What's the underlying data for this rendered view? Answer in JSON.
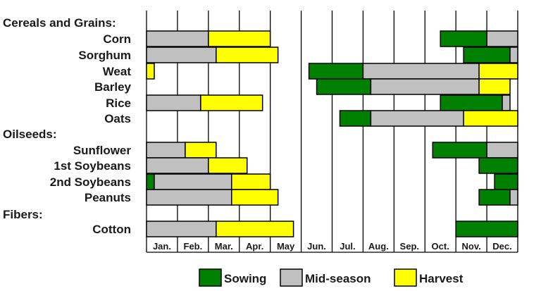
{
  "chart_data": {
    "type": "gantt",
    "months": [
      "Jan.",
      "Feb.",
      "Mar.",
      "Apr.",
      "May",
      "Jun.",
      "Jul.",
      "Aug.",
      "Sep.",
      "Oct.",
      "Nov.",
      "Dec."
    ],
    "month_range": [
      0,
      12
    ],
    "legend": [
      {
        "key": "sowing",
        "label": "Sowing",
        "color": "#008000"
      },
      {
        "key": "mid",
        "label": "Mid-season",
        "color": "#c0c0c0"
      },
      {
        "key": "harvest",
        "label": "Harvest",
        "color": "#ffff00"
      }
    ],
    "groups": [
      {
        "name": "Cereals and Grains:",
        "crops": [
          {
            "name": "Corn",
            "segments": [
              {
                "phase": "mid",
                "start": 0,
                "end": 2.0
              },
              {
                "phase": "harvest",
                "start": 2.0,
                "end": 4.0
              },
              {
                "phase": "sowing",
                "start": 9.5,
                "end": 11.0
              },
              {
                "phase": "mid",
                "start": 11.0,
                "end": 12.0
              }
            ]
          },
          {
            "name": "Sorghum",
            "segments": [
              {
                "phase": "mid",
                "start": 0,
                "end": 2.25
              },
              {
                "phase": "harvest",
                "start": 2.25,
                "end": 4.25
              },
              {
                "phase": "sowing",
                "start": 10.25,
                "end": 11.75
              },
              {
                "phase": "mid",
                "start": 11.75,
                "end": 12.0
              }
            ]
          },
          {
            "name": "Weat",
            "segments": [
              {
                "phase": "harvest",
                "start": 0,
                "end": 0.25
              },
              {
                "phase": "sowing",
                "start": 5.25,
                "end": 7.0
              },
              {
                "phase": "mid",
                "start": 7.0,
                "end": 10.75
              },
              {
                "phase": "harvest",
                "start": 10.75,
                "end": 12.0
              }
            ]
          },
          {
            "name": "Barley",
            "segments": [
              {
                "phase": "sowing",
                "start": 5.5,
                "end": 7.25
              },
              {
                "phase": "mid",
                "start": 7.25,
                "end": 10.75
              },
              {
                "phase": "harvest",
                "start": 10.75,
                "end": 11.75
              }
            ]
          },
          {
            "name": "Rice",
            "segments": [
              {
                "phase": "mid",
                "start": 0,
                "end": 1.75
              },
              {
                "phase": "harvest",
                "start": 1.75,
                "end": 3.75
              },
              {
                "phase": "sowing",
                "start": 9.5,
                "end": 11.5
              },
              {
                "phase": "mid",
                "start": 11.5,
                "end": 11.75
              }
            ]
          },
          {
            "name": "Oats",
            "segments": [
              {
                "phase": "sowing",
                "start": 6.25,
                "end": 7.25
              },
              {
                "phase": "mid",
                "start": 7.25,
                "end": 10.25
              },
              {
                "phase": "harvest",
                "start": 10.25,
                "end": 12.0
              }
            ]
          }
        ]
      },
      {
        "name": "Oilseeds:",
        "crops": [
          {
            "name": "Sunflower",
            "segments": [
              {
                "phase": "mid",
                "start": 0,
                "end": 1.25
              },
              {
                "phase": "harvest",
                "start": 1.25,
                "end": 2.25
              },
              {
                "phase": "sowing",
                "start": 9.25,
                "end": 11.0
              },
              {
                "phase": "mid",
                "start": 11.0,
                "end": 12.0
              }
            ]
          },
          {
            "name": "1st Soybeans",
            "segments": [
              {
                "phase": "mid",
                "start": 0,
                "end": 2.0
              },
              {
                "phase": "harvest",
                "start": 2.0,
                "end": 3.25
              },
              {
                "phase": "sowing",
                "start": 10.75,
                "end": 12.0
              }
            ]
          },
          {
            "name": "2nd Soybeans",
            "segments": [
              {
                "phase": "sowing",
                "start": 0,
                "end": 0.25
              },
              {
                "phase": "mid",
                "start": 0.25,
                "end": 2.75
              },
              {
                "phase": "harvest",
                "start": 2.75,
                "end": 4.0
              },
              {
                "phase": "sowing",
                "start": 11.25,
                "end": 12.0
              }
            ]
          },
          {
            "name": "Peanuts",
            "segments": [
              {
                "phase": "mid",
                "start": 0,
                "end": 2.75
              },
              {
                "phase": "harvest",
                "start": 2.75,
                "end": 4.25
              },
              {
                "phase": "sowing",
                "start": 10.75,
                "end": 11.75
              },
              {
                "phase": "mid",
                "start": 11.75,
                "end": 12.0
              }
            ]
          }
        ]
      },
      {
        "name": "Fibers:",
        "crops": [
          {
            "name": "Cotton",
            "segments": [
              {
                "phase": "mid",
                "start": 0,
                "end": 2.25
              },
              {
                "phase": "harvest",
                "start": 2.25,
                "end": 4.75
              },
              {
                "phase": "sowing",
                "start": 10.0,
                "end": 12.0
              }
            ]
          }
        ]
      }
    ]
  }
}
